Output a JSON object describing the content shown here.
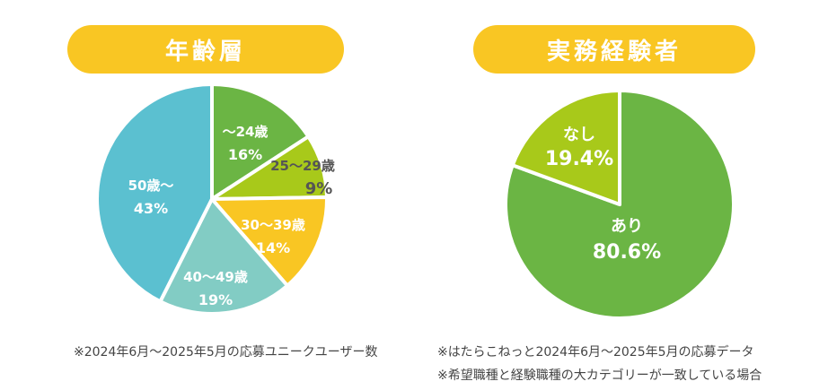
{
  "colors": {
    "pill_bg": "#f9c623",
    "pill_text": "#ffffff",
    "note_text": "#444444"
  },
  "age": {
    "title": "年齢層",
    "note": "※2024年6月〜2025年5月の応募ユニークユーザー数"
  },
  "experience": {
    "title": "実務経験者",
    "notes": [
      "※はたらこねっと2024年6月〜2025年5月の応募データ",
      "※希望職種と経験職種の大カテゴリーが一致している場合"
    ]
  },
  "chart_data": [
    {
      "type": "pie",
      "title": "年齢層",
      "slices": [
        {
          "label": "〜24歳",
          "value_label": "16%",
          "value": 16,
          "color": "#6bb544",
          "text_color": "#ffffff"
        },
        {
          "label": "25〜29歳",
          "value_label": "9%",
          "value": 9,
          "color": "#a8c91a",
          "text_color": "#555555"
        },
        {
          "label": "30〜39歳",
          "value_label": "14%",
          "value": 14,
          "color": "#f9c623",
          "text_color": "#ffffff"
        },
        {
          "label": "40〜49歳",
          "value_label": "19%",
          "value": 19,
          "color": "#82ccc4",
          "text_color": "#ffffff"
        },
        {
          "label": "50歳〜",
          "value_label": "43%",
          "value": 43,
          "color": "#5bc0d0",
          "text_color": "#ffffff"
        }
      ]
    },
    {
      "type": "pie",
      "title": "実務経験者",
      "slices": [
        {
          "label": "あり",
          "value_label": "80.6%",
          "value": 80.6,
          "color": "#6bb544",
          "text_color": "#ffffff"
        },
        {
          "label": "なし",
          "value_label": "19.4%",
          "value": 19.4,
          "color": "#a8c91a",
          "text_color": "#ffffff"
        }
      ]
    }
  ]
}
